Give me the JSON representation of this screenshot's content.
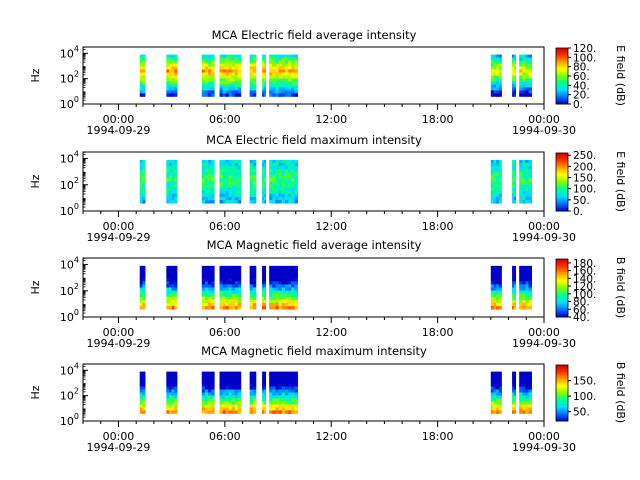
{
  "chart_data": [
    {
      "type": "heatmap",
      "title": "MCA  Electric field average intensity",
      "ylabel": "Hz",
      "colorbar_label": "E field (dB)",
      "colorbar_ticks": [
        "0.",
        "20.",
        "40.",
        "60.",
        "80.",
        "100.",
        "120."
      ],
      "zlim": [
        0,
        120
      ],
      "y_scale": "log",
      "y_ticks": [
        "10^0",
        "10^2",
        "10^4"
      ],
      "ylim_exp": [
        0,
        4.5
      ],
      "x_ticks": [
        "00:00",
        "06:00",
        "12:00",
        "18:00",
        "00:00"
      ],
      "x_dates": [
        "1994-09-29",
        "",
        "",
        "",
        "1994-09-30"
      ],
      "data_intervals_hours": [
        [
          1.2,
          1.5
        ],
        [
          2.7,
          3.3
        ],
        [
          4.7,
          5.4
        ],
        [
          5.7,
          6.9
        ],
        [
          7.4,
          7.75
        ],
        [
          8.1,
          8.3
        ],
        [
          8.5,
          10.1
        ],
        [
          21.0,
          21.6
        ],
        [
          22.2,
          22.4
        ],
        [
          22.6,
          23.3
        ]
      ],
      "intensity_band": "high (yellow/orange) near 10^3 Hz, green to cyan above and below"
    },
    {
      "type": "heatmap",
      "title": "MCA  Electric field maximum intensity",
      "ylabel": "Hz",
      "colorbar_label": "E field (dB)",
      "colorbar_ticks": [
        "0.",
        "50.",
        "100.",
        "150.",
        "200.",
        "250."
      ],
      "zlim": [
        0,
        260
      ],
      "y_scale": "log",
      "y_ticks": [
        "10^0",
        "10^2",
        "10^4"
      ],
      "ylim_exp": [
        0,
        4.5
      ],
      "x_ticks": [
        "00:00",
        "06:00",
        "12:00",
        "18:00",
        "00:00"
      ],
      "x_dates": [
        "1994-09-29",
        "",
        "",
        "",
        "1994-09-30"
      ],
      "data_intervals_hours": [
        [
          1.2,
          1.5
        ],
        [
          2.7,
          3.3
        ],
        [
          4.7,
          5.4
        ],
        [
          5.7,
          6.9
        ],
        [
          7.4,
          7.75
        ],
        [
          8.1,
          8.3
        ],
        [
          8.5,
          10.1
        ],
        [
          21.0,
          21.6
        ],
        [
          22.2,
          22.4
        ],
        [
          22.6,
          23.3
        ]
      ],
      "intensity_band": "mostly cyan and light green, blue streaks"
    },
    {
      "type": "heatmap",
      "title": "MCA  Magnetic field average intensity",
      "ylabel": "Hz",
      "colorbar_label": "B field (dB)",
      "colorbar_ticks": [
        "40.",
        "60.",
        "80.",
        "100.",
        "120.",
        "140.",
        "160.",
        "180."
      ],
      "zlim": [
        40,
        190
      ],
      "y_scale": "log",
      "y_ticks": [
        "10^0",
        "10^2",
        "10^4"
      ],
      "ylim_exp": [
        0,
        4.5
      ],
      "x_ticks": [
        "00:00",
        "06:00",
        "12:00",
        "18:00",
        "00:00"
      ],
      "x_dates": [
        "1994-09-29",
        "",
        "",
        "",
        "1994-09-30"
      ],
      "data_intervals_hours": [
        [
          1.2,
          1.5
        ],
        [
          2.7,
          3.3
        ],
        [
          4.7,
          5.4
        ],
        [
          5.7,
          6.9
        ],
        [
          7.4,
          7.75
        ],
        [
          8.1,
          8.3
        ],
        [
          8.5,
          10.1
        ],
        [
          21.0,
          21.6
        ],
        [
          22.2,
          22.4
        ],
        [
          22.6,
          23.3
        ]
      ],
      "intensity_band": "green mid-band, orange/red near bottom at lowest frequencies, cyan at top"
    },
    {
      "type": "heatmap",
      "title": "MCA  Magnetic field maximum intensity",
      "ylabel": "Hz",
      "colorbar_label": "B field (dB)",
      "colorbar_ticks": [
        "50.",
        "100.",
        "150."
      ],
      "zlim": [
        20,
        200
      ],
      "y_scale": "log",
      "y_ticks": [
        "10^0",
        "10^2",
        "10^4"
      ],
      "ylim_exp": [
        0,
        4.5
      ],
      "x_ticks": [
        "00:00",
        "06:00",
        "12:00",
        "18:00",
        "00:00"
      ],
      "x_dates": [
        "1994-09-29",
        "",
        "",
        "",
        "1994-09-30"
      ],
      "data_intervals_hours": [
        [
          1.2,
          1.5
        ],
        [
          2.7,
          3.3
        ],
        [
          4.7,
          5.4
        ],
        [
          5.7,
          6.9
        ],
        [
          7.4,
          7.75
        ],
        [
          8.1,
          8.3
        ],
        [
          8.5,
          10.1
        ],
        [
          21.0,
          21.6
        ],
        [
          22.2,
          22.4
        ],
        [
          22.6,
          23.3
        ]
      ],
      "intensity_band": "green mid-band, orange/red at bottom, cyan at top"
    }
  ],
  "colormap": [
    "#0000c8",
    "#0070ff",
    "#00e0ff",
    "#00ff90",
    "#80ff00",
    "#ffff00",
    "#ffa000",
    "#ff3000",
    "#d00000"
  ]
}
